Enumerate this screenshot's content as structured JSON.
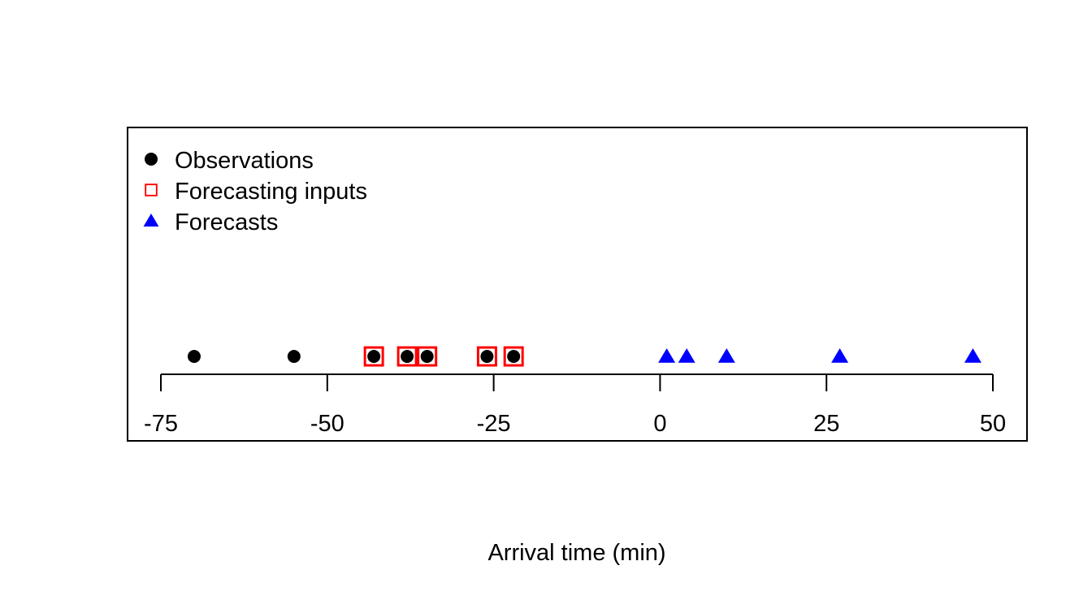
{
  "chart_data": {
    "type": "scatter",
    "title": "",
    "xlabel": "Arrival time (min)",
    "ylabel": "",
    "xlim": [
      -75,
      50
    ],
    "xticks": [
      -75,
      -50,
      -25,
      0,
      25,
      50
    ],
    "grid": false,
    "legend_position": "top-left",
    "series": [
      {
        "name": "Observations",
        "marker": "filled-circle",
        "color": "#000000",
        "x": [
          -70,
          -55,
          -43,
          -38,
          -35,
          -26,
          -22
        ]
      },
      {
        "name": "Forecasting inputs",
        "marker": "open-square",
        "color": "#ff0000",
        "x": [
          -43,
          -38,
          -35,
          -26,
          -22
        ]
      },
      {
        "name": "Forecasts",
        "marker": "filled-triangle",
        "color": "#0000ff",
        "x": [
          1,
          4,
          10,
          27,
          47
        ]
      }
    ]
  }
}
